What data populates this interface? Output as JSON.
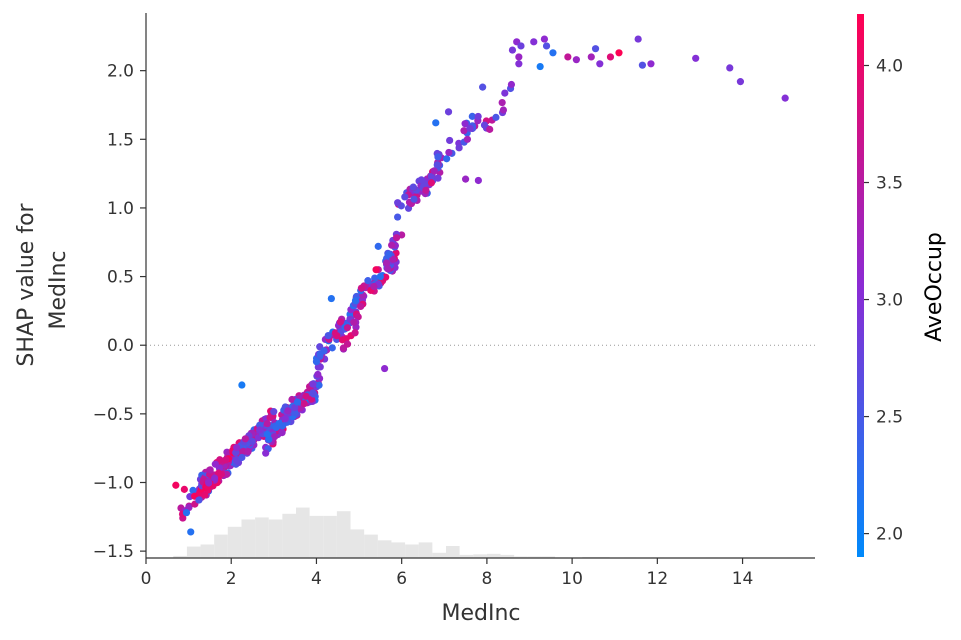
{
  "chart_data": {
    "type": "scatter",
    "xlabel": "MedInc",
    "ylabel_lines": [
      "SHAP value for",
      "MedInc"
    ],
    "xlim": [
      0,
      15.7
    ],
    "ylim": [
      -1.55,
      2.42
    ],
    "xticks": [
      0,
      2,
      4,
      6,
      8,
      10,
      12,
      14
    ],
    "xtick_labels": [
      "0",
      "2",
      "4",
      "6",
      "8",
      "10",
      "12",
      "14"
    ],
    "yticks": [
      -1.5,
      -1.0,
      -0.5,
      0.0,
      0.5,
      1.0,
      1.5,
      2.0
    ],
    "ytick_labels": [
      "−1.5",
      "−1.0",
      "−0.5",
      "0.0",
      "0.5",
      "1.0",
      "1.5",
      "2.0"
    ],
    "reference_line_y": 0.0,
    "grid": false,
    "colorbar": {
      "label": "AveOccup",
      "range": [
        1.9,
        4.22
      ],
      "ticks": [
        2.0,
        2.5,
        3.0,
        3.5,
        4.0
      ],
      "tick_labels": [
        "2.0",
        "2.5",
        "3.0",
        "3.5",
        "4.0"
      ],
      "color_low": "#008afb",
      "color_mid": "#8b2bd4",
      "color_high": "#ff0052"
    },
    "histogram": {
      "color": "#e6e6e6",
      "bin_width": 0.32,
      "bins": [
        {
          "x": 0.64,
          "count": 0.04
        },
        {
          "x": 0.96,
          "count": 0.22
        },
        {
          "x": 1.28,
          "count": 0.26
        },
        {
          "x": 1.6,
          "count": 0.45
        },
        {
          "x": 1.92,
          "count": 0.6
        },
        {
          "x": 2.24,
          "count": 0.74
        },
        {
          "x": 2.56,
          "count": 0.78
        },
        {
          "x": 2.88,
          "count": 0.74
        },
        {
          "x": 3.2,
          "count": 0.85
        },
        {
          "x": 3.52,
          "count": 0.97
        },
        {
          "x": 3.84,
          "count": 0.81
        },
        {
          "x": 4.16,
          "count": 0.81
        },
        {
          "x": 4.48,
          "count": 0.9
        },
        {
          "x": 4.8,
          "count": 0.55
        },
        {
          "x": 5.12,
          "count": 0.45
        },
        {
          "x": 5.44,
          "count": 0.34
        },
        {
          "x": 5.76,
          "count": 0.3
        },
        {
          "x": 6.08,
          "count": 0.26
        },
        {
          "x": 6.4,
          "count": 0.3
        },
        {
          "x": 6.72,
          "count": 0.1
        },
        {
          "x": 7.04,
          "count": 0.23
        },
        {
          "x": 7.36,
          "count": 0.06
        },
        {
          "x": 7.68,
          "count": 0.07
        },
        {
          "x": 8.0,
          "count": 0.08
        },
        {
          "x": 8.32,
          "count": 0.06
        },
        {
          "x": 8.64,
          "count": 0.03
        },
        {
          "x": 8.96,
          "count": 0.03
        },
        {
          "x": 9.28,
          "count": 0.03
        },
        {
          "x": 9.6,
          "count": 0.01
        },
        {
          "x": 10.24,
          "count": 0.02
        },
        {
          "x": 10.56,
          "count": 0.02
        },
        {
          "x": 11.2,
          "count": 0.01
        },
        {
          "x": 11.84,
          "count": 0.01
        },
        {
          "x": 13.12,
          "count": 0.01
        },
        {
          "x": 14.4,
          "count": 0.01
        },
        {
          "x": 15.04,
          "count": 0.01
        }
      ]
    },
    "clusters": [
      {
        "x0": 0.7,
        "x1": 1.4,
        "y0": -1.3,
        "y1": -0.95,
        "c0": 2.2,
        "c1": 4.1,
        "n": 14
      },
      {
        "x0": 1.0,
        "x1": 2.2,
        "y0": -1.15,
        "y1": -0.78,
        "c0": 2.1,
        "c1": 4.2,
        "n": 70
      },
      {
        "x0": 1.4,
        "x1": 2.2,
        "y0": -0.98,
        "y1": -0.75,
        "c0": 3.0,
        "c1": 4.2,
        "n": 40
      },
      {
        "x0": 2.1,
        "x1": 3.0,
        "y0": -0.82,
        "y1": -0.52,
        "c0": 2.2,
        "c1": 4.0,
        "n": 70
      },
      {
        "x0": 2.8,
        "x1": 3.6,
        "y0": -0.72,
        "y1": -0.42,
        "c0": 2.2,
        "c1": 4.0,
        "n": 60
      },
      {
        "x0": 3.2,
        "x1": 4.1,
        "y0": -0.52,
        "y1": -0.3,
        "c0": 2.2,
        "c1": 3.8,
        "n": 60
      },
      {
        "x0": 3.9,
        "x1": 4.2,
        "y0": -0.32,
        "y1": -0.05,
        "c0": 2.3,
        "c1": 3.2,
        "n": 10
      },
      {
        "x0": 4.0,
        "x1": 5.0,
        "y0": -0.1,
        "y1": 0.28,
        "c0": 2.1,
        "c1": 3.9,
        "n": 55
      },
      {
        "x0": 4.6,
        "x1": 5.0,
        "y0": 0.02,
        "y1": 0.18,
        "c0": 3.2,
        "c1": 4.0,
        "n": 12
      },
      {
        "x0": 4.9,
        "x1": 5.9,
        "y0": 0.3,
        "y1": 0.65,
        "c0": 2.2,
        "c1": 4.0,
        "n": 50
      },
      {
        "x0": 5.6,
        "x1": 6.0,
        "y0": 0.55,
        "y1": 0.85,
        "c0": 2.3,
        "c1": 3.8,
        "n": 18
      },
      {
        "x0": 5.9,
        "x1": 6.9,
        "y0": 1.0,
        "y1": 1.25,
        "c0": 2.2,
        "c1": 3.9,
        "n": 45
      },
      {
        "x0": 6.7,
        "x1": 7.8,
        "y0": 1.3,
        "y1": 1.65,
        "c0": 2.3,
        "c1": 3.5,
        "n": 30
      },
      {
        "x0": 7.9,
        "x1": 8.6,
        "y0": 1.55,
        "y1": 1.85,
        "c0": 2.5,
        "c1": 3.8,
        "n": 12
      }
    ],
    "points": [
      {
        "x": 0.7,
        "y": -1.02,
        "c": 4.1
      },
      {
        "x": 0.9,
        "y": -1.05,
        "c": 4.0
      },
      {
        "x": 0.95,
        "y": -1.22,
        "c": 2.2
      },
      {
        "x": 1.05,
        "y": -1.36,
        "c": 2.2
      },
      {
        "x": 2.25,
        "y": -0.29,
        "c": 2.1
      },
      {
        "x": 4.0,
        "y": -0.12,
        "c": 2.3
      },
      {
        "x": 4.35,
        "y": 0.34,
        "c": 2.2
      },
      {
        "x": 5.4,
        "y": 0.55,
        "c": 4.1
      },
      {
        "x": 5.45,
        "y": 0.72,
        "c": 2.3
      },
      {
        "x": 5.5,
        "y": 0.5,
        "c": 2.2
      },
      {
        "x": 5.6,
        "y": -0.17,
        "c": 3.1
      },
      {
        "x": 6.8,
        "y": 1.62,
        "c": 2.2
      },
      {
        "x": 7.1,
        "y": 1.7,
        "c": 2.8
      },
      {
        "x": 7.6,
        "y": 1.58,
        "c": 2.9
      },
      {
        "x": 7.8,
        "y": 1.2,
        "c": 3.1
      },
      {
        "x": 7.5,
        "y": 1.21,
        "c": 3.2
      },
      {
        "x": 7.9,
        "y": 1.88,
        "c": 2.6
      },
      {
        "x": 8.6,
        "y": 2.15,
        "c": 2.9
      },
      {
        "x": 8.7,
        "y": 2.21,
        "c": 3.1
      },
      {
        "x": 8.75,
        "y": 2.1,
        "c": 3.2
      },
      {
        "x": 8.75,
        "y": 2.05,
        "c": 3.0
      },
      {
        "x": 8.8,
        "y": 2.18,
        "c": 2.8
      },
      {
        "x": 9.1,
        "y": 2.21,
        "c": 3.0
      },
      {
        "x": 9.25,
        "y": 2.03,
        "c": 2.1
      },
      {
        "x": 9.35,
        "y": 2.23,
        "c": 3.1
      },
      {
        "x": 9.4,
        "y": 2.18,
        "c": 2.6
      },
      {
        "x": 9.55,
        "y": 2.13,
        "c": 2.2
      },
      {
        "x": 9.9,
        "y": 2.1,
        "c": 3.6
      },
      {
        "x": 10.1,
        "y": 2.08,
        "c": 3.2
      },
      {
        "x": 10.45,
        "y": 2.1,
        "c": 3.3
      },
      {
        "x": 10.55,
        "y": 2.16,
        "c": 2.6
      },
      {
        "x": 10.65,
        "y": 2.05,
        "c": 3.0
      },
      {
        "x": 10.9,
        "y": 2.1,
        "c": 3.9
      },
      {
        "x": 11.1,
        "y": 2.13,
        "c": 4.2
      },
      {
        "x": 11.55,
        "y": 2.23,
        "c": 2.9
      },
      {
        "x": 11.65,
        "y": 2.04,
        "c": 2.6
      },
      {
        "x": 11.85,
        "y": 2.05,
        "c": 3.1
      },
      {
        "x": 12.9,
        "y": 2.09,
        "c": 3.0
      },
      {
        "x": 13.7,
        "y": 2.02,
        "c": 2.9
      },
      {
        "x": 13.95,
        "y": 1.92,
        "c": 2.9
      },
      {
        "x": 15.0,
        "y": 1.8,
        "c": 3.0
      }
    ]
  }
}
